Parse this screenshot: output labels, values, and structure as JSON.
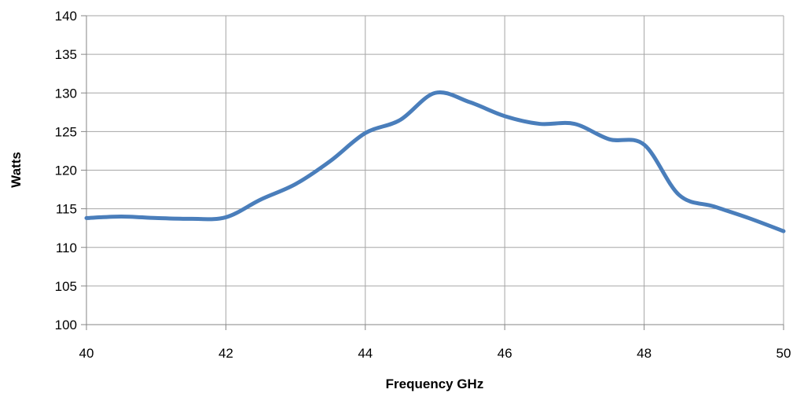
{
  "chart_data": {
    "type": "line",
    "title": "",
    "xlabel": "Frequency GHz",
    "ylabel": "Watts",
    "xlim": [
      40,
      50
    ],
    "ylim": [
      100,
      140
    ],
    "x_ticks": [
      40,
      42,
      44,
      46,
      48,
      50
    ],
    "y_ticks": [
      100,
      105,
      110,
      115,
      120,
      125,
      130,
      135,
      140
    ],
    "grid": true,
    "legend": "none",
    "series": [
      {
        "color": "#4a7ebb",
        "x": [
          40,
          40.5,
          41,
          41.5,
          42,
          42.5,
          43,
          43.5,
          44,
          44.5,
          45,
          45.5,
          46,
          46.5,
          47,
          47.5,
          48,
          48.5,
          49,
          49.5,
          50
        ],
        "y": [
          113.8,
          114.0,
          113.8,
          113.7,
          113.9,
          116.2,
          118.2,
          121.2,
          124.8,
          126.5,
          130.0,
          128.8,
          127.0,
          126.0,
          126.0,
          124.0,
          123.3,
          116.8,
          115.3,
          113.8,
          112.1
        ]
      }
    ]
  }
}
